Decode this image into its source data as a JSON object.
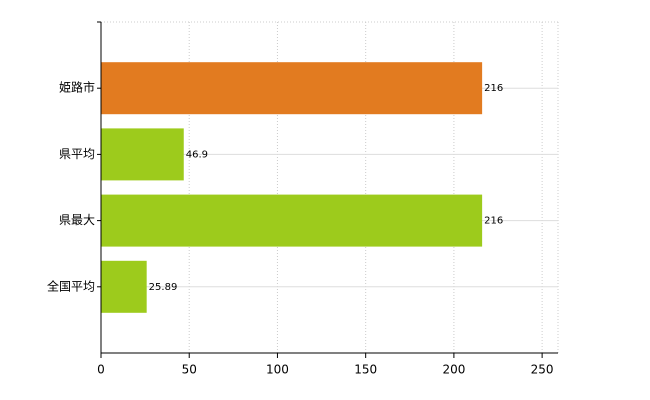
{
  "chart_data": {
    "type": "barh",
    "categories": [
      "姫路市",
      "県平均",
      "県最大",
      "全国平均"
    ],
    "values": [
      216,
      46.9,
      216,
      25.89
    ],
    "colors": [
      "#e27b20",
      "#9dcb1c",
      "#9dcb1c",
      "#9dcb1c"
    ],
    "xlim": [
      0,
      259
    ],
    "xticks": [
      0,
      50,
      100,
      150,
      200,
      250
    ],
    "grid": true
  }
}
